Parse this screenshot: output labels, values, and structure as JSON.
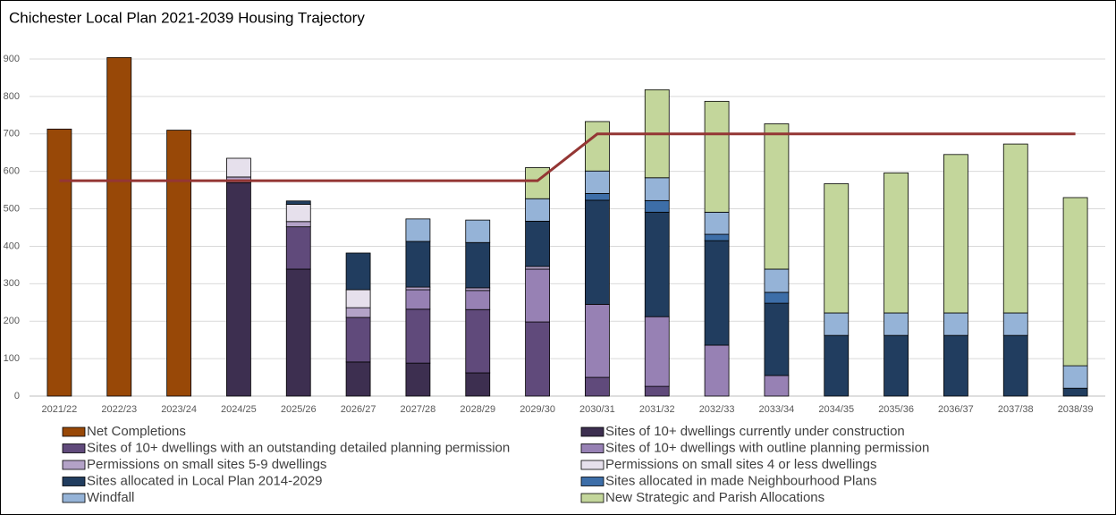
{
  "chart_data": {
    "type": "stacked_bar_line",
    "title": "Chichester Local Plan 2021-2039 Housing Trajectory",
    "categories": [
      "2021/22",
      "2022/23",
      "2023/24",
      "2024/25",
      "2025/26",
      "2026/27",
      "2027/28",
      "2028/29",
      "2029/30",
      "2030/31",
      "2031/32",
      "2032/33",
      "2033/34",
      "2034/35",
      "2035/36",
      "2036/37",
      "2037/38",
      "2038/39"
    ],
    "series": [
      {
        "name": "Net Completions",
        "color": "#984807",
        "values": [
          713,
          904,
          710,
          0,
          0,
          0,
          0,
          0,
          0,
          0,
          0,
          0,
          0,
          0,
          0,
          0,
          0,
          0
        ]
      },
      {
        "name": "Sites of 10+ dwellings currently under construction",
        "color": "#3d2f50",
        "values": [
          0,
          0,
          0,
          570,
          339,
          91,
          88,
          62,
          0,
          0,
          0,
          0,
          0,
          0,
          0,
          0,
          0,
          0
        ]
      },
      {
        "name": "Sites of 10+ dwellings with an outstanding detailed planning permission",
        "color": "#604a7b",
        "values": [
          0,
          0,
          0,
          0,
          113,
          119,
          144,
          169,
          198,
          50,
          26,
          0,
          0,
          0,
          0,
          0,
          0,
          0
        ]
      },
      {
        "name": "Sites of 10+ dwellings with outline planning permission",
        "color": "#9781b4",
        "values": [
          0,
          0,
          0,
          0,
          0,
          0,
          52,
          51,
          141,
          195,
          186,
          136,
          55,
          0,
          0,
          0,
          0,
          0
        ]
      },
      {
        "name": "Permissions on small sites 5-9 dwellings",
        "color": "#b3a2c7",
        "values": [
          0,
          0,
          0,
          15,
          14,
          26,
          7,
          7,
          7,
          0,
          0,
          0,
          0,
          0,
          0,
          0,
          0,
          0
        ]
      },
      {
        "name": "Permissions on small sites 4 or less dwellings",
        "color": "#e6e0ec",
        "values": [
          0,
          0,
          0,
          50,
          46,
          48,
          0,
          0,
          0,
          0,
          0,
          0,
          0,
          0,
          0,
          0,
          0,
          0
        ]
      },
      {
        "name": "Sites allocated in Local Plan 2014-2029",
        "color": "#213d5f",
        "values": [
          0,
          0,
          0,
          0,
          9,
          98,
          122,
          121,
          121,
          278,
          279,
          279,
          193,
          162,
          162,
          162,
          162,
          21
        ]
      },
      {
        "name": "Sites allocated in made Neighbourhood Plans",
        "color": "#3d6ea8",
        "values": [
          0,
          0,
          0,
          0,
          0,
          0,
          0,
          0,
          0,
          18,
          31,
          17,
          29,
          0,
          0,
          0,
          0,
          0
        ]
      },
      {
        "name": "Windfall",
        "color": "#95b3d7",
        "values": [
          0,
          0,
          0,
          0,
          0,
          0,
          60,
          60,
          60,
          60,
          61,
          59,
          62,
          60,
          60,
          60,
          60,
          60
        ]
      },
      {
        "name": "New Strategic and Parish Allocations",
        "color": "#c3d69b",
        "values": [
          0,
          0,
          0,
          0,
          0,
          0,
          0,
          0,
          83,
          132,
          235,
          296,
          388,
          345,
          374,
          423,
          451,
          449
        ]
      }
    ],
    "line": {
      "color": "#943634",
      "values": [
        575,
        575,
        575,
        575,
        575,
        575,
        575,
        575,
        575,
        700,
        700,
        700,
        700,
        700,
        700,
        700,
        700,
        700
      ]
    },
    "ylim": [
      0,
      900
    ],
    "yticks": [
      0,
      100,
      200,
      300,
      400,
      500,
      600,
      700,
      800,
      900
    ],
    "grid": true
  }
}
